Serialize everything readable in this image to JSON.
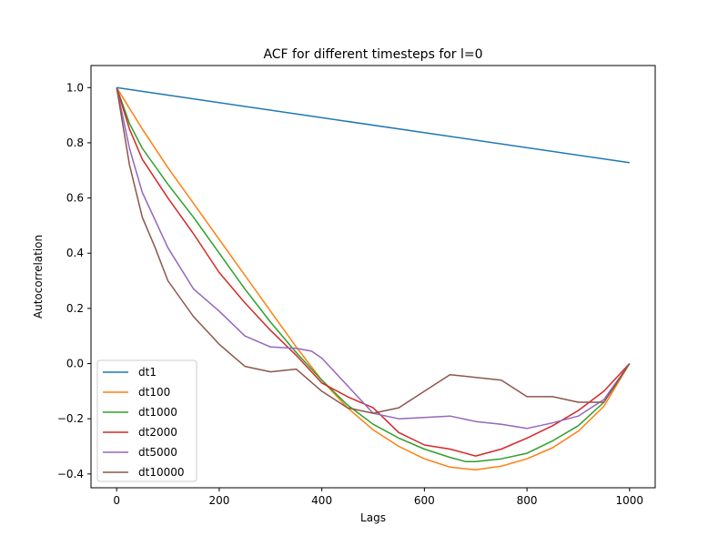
{
  "chart_data": {
    "type": "line",
    "title": "ACF for different timesteps for l=0",
    "xlabel": "Lags",
    "ylabel": "Autocorrelation",
    "xlim": [
      -50,
      1050
    ],
    "ylim": [
      -0.45,
      1.08
    ],
    "xticks": [
      0,
      200,
      400,
      600,
      800,
      1000
    ],
    "xtick_labels": [
      "0",
      "200",
      "400",
      "600",
      "800",
      "1000"
    ],
    "yticks": [
      -0.4,
      -0.2,
      0.0,
      0.2,
      0.4,
      0.6,
      0.8,
      1.0
    ],
    "ytick_labels": [
      "−0.4",
      "−0.2",
      "0.0",
      "0.2",
      "0.4",
      "0.6",
      "0.8",
      "1.0"
    ],
    "grid": false,
    "legend_position": "lower-left",
    "series": [
      {
        "name": "dt1",
        "color": "#1f77b4",
        "points": [
          [
            0,
            1.0
          ],
          [
            1000,
            0.728
          ]
        ]
      },
      {
        "name": "dt100",
        "color": "#ff7f0e",
        "points": [
          [
            0,
            1.0
          ],
          [
            50,
            0.85
          ],
          [
            100,
            0.71
          ],
          [
            150,
            0.58
          ],
          [
            200,
            0.45
          ],
          [
            250,
            0.32
          ],
          [
            300,
            0.19
          ],
          [
            350,
            0.06
          ],
          [
            400,
            -0.06
          ],
          [
            450,
            -0.16
          ],
          [
            500,
            -0.24
          ],
          [
            550,
            -0.3
          ],
          [
            600,
            -0.345
          ],
          [
            650,
            -0.375
          ],
          [
            700,
            -0.385
          ],
          [
            750,
            -0.372
          ],
          [
            800,
            -0.345
          ],
          [
            850,
            -0.305
          ],
          [
            900,
            -0.245
          ],
          [
            950,
            -0.155
          ],
          [
            1000,
            0.0
          ]
        ]
      },
      {
        "name": "dt1000",
        "color": "#2ca02c",
        "points": [
          [
            0,
            1.0
          ],
          [
            25,
            0.87
          ],
          [
            50,
            0.78
          ],
          [
            100,
            0.65
          ],
          [
            150,
            0.53
          ],
          [
            200,
            0.4
          ],
          [
            250,
            0.27
          ],
          [
            300,
            0.15
          ],
          [
            350,
            0.04
          ],
          [
            400,
            -0.06
          ],
          [
            450,
            -0.15
          ],
          [
            500,
            -0.22
          ],
          [
            550,
            -0.27
          ],
          [
            600,
            -0.31
          ],
          [
            650,
            -0.34
          ],
          [
            680,
            -0.355
          ],
          [
            700,
            -0.355
          ],
          [
            750,
            -0.345
          ],
          [
            800,
            -0.325
          ],
          [
            850,
            -0.28
          ],
          [
            900,
            -0.225
          ],
          [
            950,
            -0.14
          ],
          [
            1000,
            0.0
          ]
        ]
      },
      {
        "name": "dt2000",
        "color": "#d62728",
        "points": [
          [
            0,
            1.0
          ],
          [
            25,
            0.85
          ],
          [
            50,
            0.74
          ],
          [
            100,
            0.6
          ],
          [
            150,
            0.47
          ],
          [
            200,
            0.33
          ],
          [
            250,
            0.22
          ],
          [
            300,
            0.12
          ],
          [
            350,
            0.03
          ],
          [
            400,
            -0.07
          ],
          [
            450,
            -0.12
          ],
          [
            500,
            -0.16
          ],
          [
            550,
            -0.25
          ],
          [
            600,
            -0.295
          ],
          [
            650,
            -0.31
          ],
          [
            700,
            -0.335
          ],
          [
            750,
            -0.31
          ],
          [
            800,
            -0.27
          ],
          [
            850,
            -0.225
          ],
          [
            900,
            -0.17
          ],
          [
            950,
            -0.1
          ],
          [
            1000,
            0.0
          ]
        ]
      },
      {
        "name": "dt5000",
        "color": "#9467bd",
        "points": [
          [
            0,
            1.0
          ],
          [
            25,
            0.78
          ],
          [
            50,
            0.62
          ],
          [
            100,
            0.42
          ],
          [
            150,
            0.27
          ],
          [
            200,
            0.19
          ],
          [
            250,
            0.1
          ],
          [
            300,
            0.06
          ],
          [
            350,
            0.055
          ],
          [
            380,
            0.045
          ],
          [
            400,
            0.02
          ],
          [
            450,
            -0.08
          ],
          [
            500,
            -0.18
          ],
          [
            550,
            -0.2
          ],
          [
            600,
            -0.195
          ],
          [
            650,
            -0.19
          ],
          [
            700,
            -0.21
          ],
          [
            750,
            -0.22
          ],
          [
            800,
            -0.235
          ],
          [
            850,
            -0.215
          ],
          [
            900,
            -0.19
          ],
          [
            950,
            -0.13
          ],
          [
            1000,
            0.0
          ]
        ]
      },
      {
        "name": "dt10000",
        "color": "#8c564b",
        "points": [
          [
            0,
            1.0
          ],
          [
            25,
            0.72
          ],
          [
            50,
            0.53
          ],
          [
            75,
            0.42
          ],
          [
            100,
            0.3
          ],
          [
            150,
            0.17
          ],
          [
            200,
            0.07
          ],
          [
            250,
            -0.01
          ],
          [
            300,
            -0.03
          ],
          [
            350,
            -0.02
          ],
          [
            400,
            -0.1
          ],
          [
            450,
            -0.16
          ],
          [
            500,
            -0.18
          ],
          [
            550,
            -0.16
          ],
          [
            600,
            -0.1
          ],
          [
            650,
            -0.04
          ],
          [
            700,
            -0.05
          ],
          [
            750,
            -0.06
          ],
          [
            800,
            -0.12
          ],
          [
            850,
            -0.12
          ],
          [
            900,
            -0.14
          ],
          [
            950,
            -0.14
          ],
          [
            1000,
            0.0
          ]
        ]
      }
    ]
  }
}
